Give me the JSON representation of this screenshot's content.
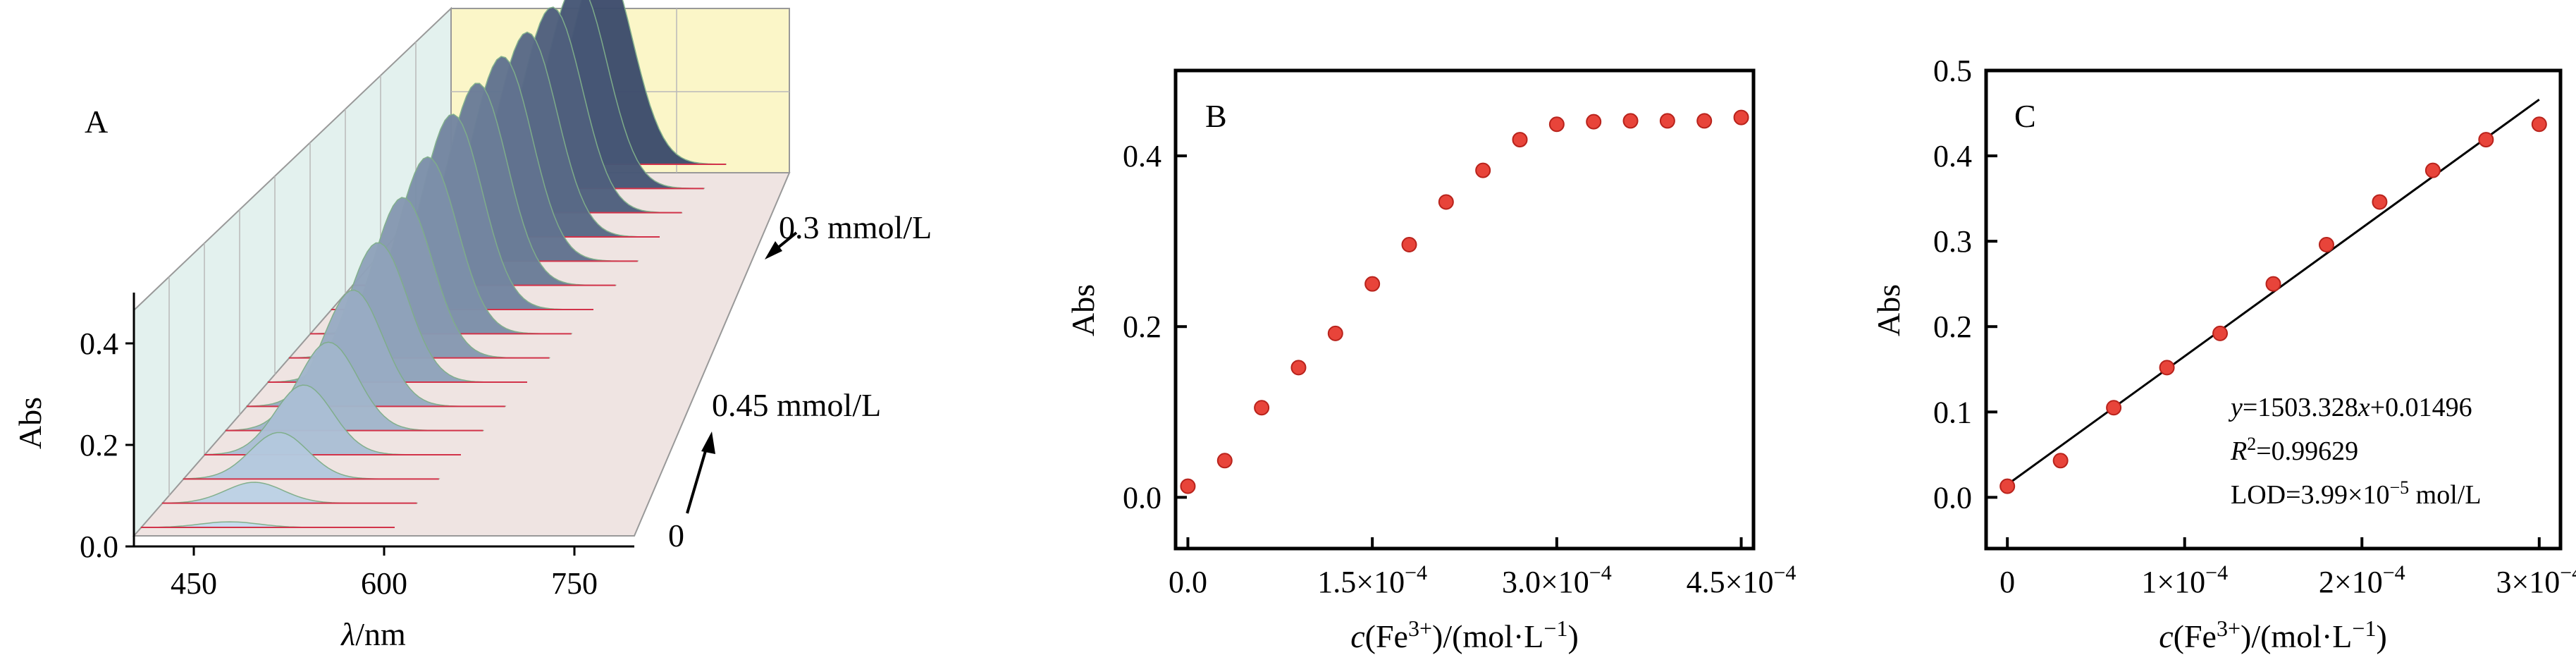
{
  "panels": {
    "a": {
      "label": "A"
    },
    "b": {
      "label": "B"
    },
    "c": {
      "label": "C"
    }
  },
  "colors": {
    "point_fill": "#e8443a",
    "point_stroke": "#b8231c",
    "fit_line": "#000000",
    "wall_back": "#fbf6c8",
    "wall_side": "#e3f1ee",
    "floor": "#efe4e2",
    "curve_dark": "#3e4d6d",
    "curve_light": "#c6dcef"
  },
  "chart_data": [
    {
      "id": "A",
      "type": "area",
      "title": "",
      "xlabel_symbol": "λ",
      "xlabel_unit": "/nm",
      "ylabel": "Abs",
      "xticks": [
        "450",
        "600",
        "750"
      ],
      "yticks": [
        "0.0",
        "0.2",
        "0.4"
      ],
      "xlim": [
        400,
        800
      ],
      "ylim": [
        0,
        0.5
      ],
      "depth_annotations": [
        "0.3 mmol/L",
        "0.45 mmol/L",
        "0"
      ],
      "series_depth_variable": "c(Fe3+)",
      "peak_wavelength_nm": [
        540,
        545,
        550,
        555,
        560,
        565,
        570,
        575,
        580,
        585,
        590,
        595,
        600,
        605,
        610,
        615
      ],
      "peak_abs": [
        0.012,
        0.045,
        0.1,
        0.15,
        0.19,
        0.25,
        0.3,
        0.345,
        0.38,
        0.42,
        0.435,
        0.44,
        0.44,
        0.442,
        0.442,
        0.445
      ],
      "grid": true
    },
    {
      "id": "B",
      "type": "scatter",
      "title": "",
      "xlabel_prefix": "c",
      "xlabel_ion": "(Fe",
      "xlabel_charge": "3+",
      "xlabel_unit": ")/(mol·L",
      "xlabel_exp": "−1",
      "xlabel_close": ")",
      "ylabel": "Abs",
      "xticks": [
        "0.0",
        "1.5×10",
        "3.0×10",
        "4.5×10"
      ],
      "xtick_exp": "−4",
      "yticks": [
        "0.0",
        "0.2",
        "0.4"
      ],
      "xlim": [
        -1e-05,
        0.00046
      ],
      "ylim": [
        -0.06,
        0.5
      ],
      "x": [
        0,
        3e-05,
        6e-05,
        9e-05,
        0.00012,
        0.00015,
        0.00018,
        0.00021,
        0.00024,
        0.00027,
        0.0003,
        0.00033,
        0.00036,
        0.00039,
        0.00042,
        0.00045
      ],
      "y": [
        0.013,
        0.043,
        0.105,
        0.152,
        0.192,
        0.25,
        0.296,
        0.346,
        0.383,
        0.419,
        0.437,
        0.44,
        0.441,
        0.441,
        0.441,
        0.445
      ],
      "grid": false
    },
    {
      "id": "C",
      "type": "scatter",
      "title": "",
      "xlabel_prefix": "c",
      "xlabel_ion": "(Fe",
      "xlabel_charge": "3+",
      "xlabel_unit": ")/(mol·L",
      "xlabel_exp": "−1",
      "xlabel_close": ")",
      "ylabel": "Abs",
      "xticks": [
        "0",
        "1×10",
        "2×10",
        "3×10"
      ],
      "xtick_exp": "−4",
      "yticks": [
        "0.0",
        "0.1",
        "0.2",
        "0.3",
        "0.4",
        "0.5"
      ],
      "xlim": [
        -1.2e-05,
        0.000312
      ],
      "ylim": [
        -0.06,
        0.5
      ],
      "x": [
        0,
        3e-05,
        6e-05,
        9e-05,
        0.00012,
        0.00015,
        0.00018,
        0.00021,
        0.00024,
        0.00027,
        0.0003
      ],
      "y": [
        0.013,
        0.043,
        0.105,
        0.152,
        0.192,
        0.25,
        0.296,
        0.346,
        0.383,
        0.419,
        0.437
      ],
      "fit": {
        "slope": 1503.328,
        "intercept": 0.01496,
        "x_range": [
          0,
          0.0003
        ]
      },
      "annotation": {
        "eq_y": "y",
        "eq_mid": "=1503.328",
        "eq_x": "x",
        "eq_tail": "+0.01496",
        "r2_r": "R",
        "r2_sup": "2",
        "r2_val": "=0.99629",
        "lod_text": "LOD=3.99×10",
        "lod_exp": "−5",
        "lod_unit": " mol/L"
      },
      "grid": false
    }
  ]
}
